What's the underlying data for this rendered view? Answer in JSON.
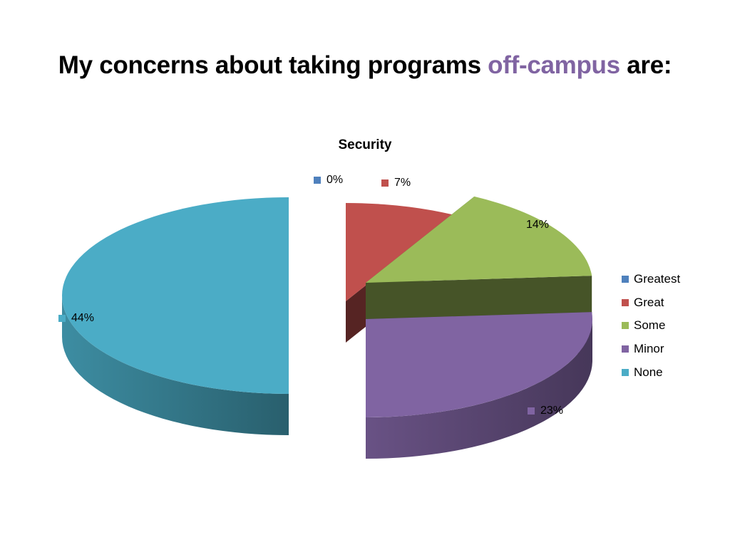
{
  "slide": {
    "title_main": "My concerns about taking programs ",
    "title_accent": "off-campus",
    "title_end": " are:"
  },
  "chart_data": {
    "type": "pie",
    "style": "3d-exploded",
    "title": "Security",
    "legend_position": "right",
    "categories": [
      "Greatest",
      "Great",
      "Some",
      "Minor",
      "None"
    ],
    "values": [
      0,
      7,
      14,
      23,
      44
    ],
    "labels": [
      "0%",
      "7%",
      "14%",
      "23%",
      "44%"
    ],
    "colors": [
      "#4f81bd",
      "#c0504d",
      "#9bbb59",
      "#8064a2",
      "#4bacc6"
    ]
  }
}
